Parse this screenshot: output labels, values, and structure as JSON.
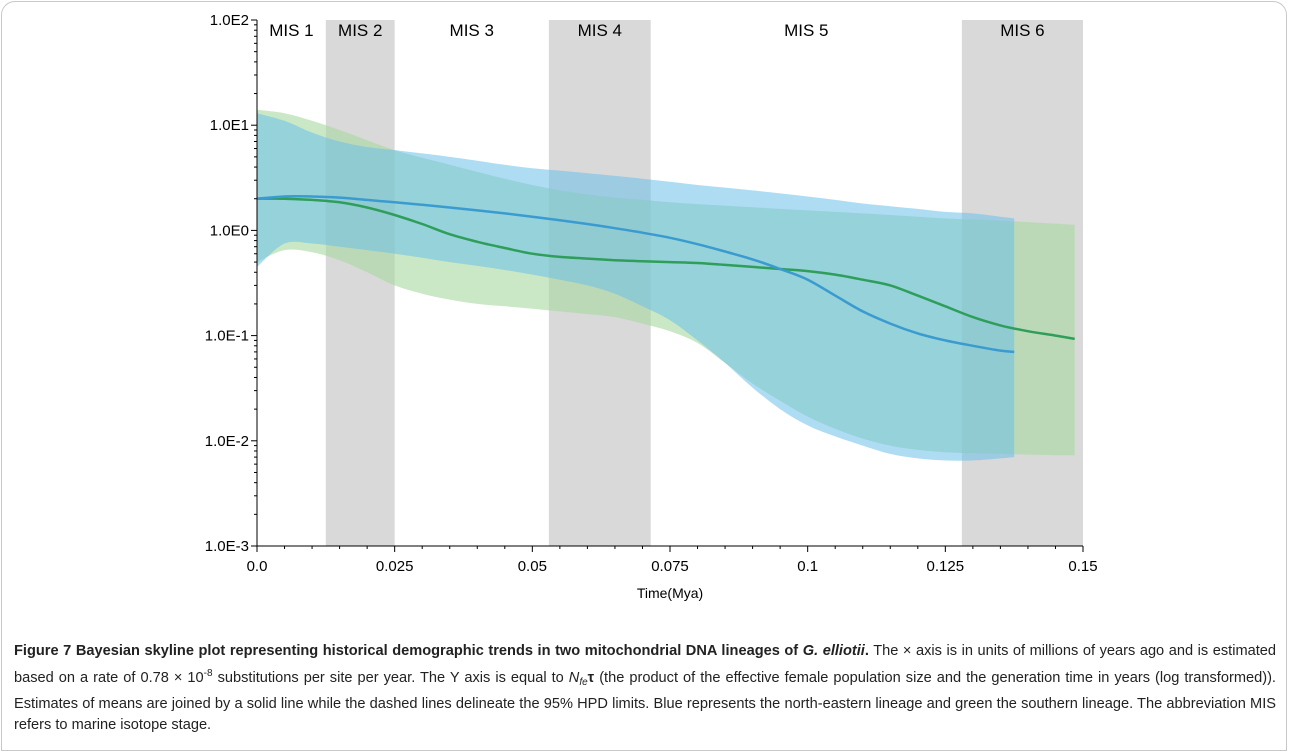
{
  "chart_data": {
    "type": "area",
    "xlabel": "Time(Mya)",
    "ylabel": "",
    "xlim": [
      0,
      0.15
    ],
    "ylim": [
      0.001,
      100
    ],
    "y_scale": "log",
    "x_ticks": [
      0,
      0.025,
      0.05,
      0.075,
      0.1,
      0.125,
      0.15
    ],
    "x_tick_labels": [
      "0.0",
      "0.025",
      "0.05",
      "0.075",
      "0.1",
      "0.125",
      "0.15"
    ],
    "y_ticks": [
      0.001,
      0.01,
      0.1,
      1,
      10,
      100
    ],
    "y_tick_labels": [
      "1.0E-3",
      "1.0E-2",
      "1.0E-1",
      "1.0E0",
      "1.0E1",
      "1.0E2"
    ],
    "mis_stages": [
      {
        "label": "MIS 1",
        "start": 0.0,
        "end": 0.0125,
        "shaded": false
      },
      {
        "label": "MIS 2",
        "start": 0.0125,
        "end": 0.025,
        "shaded": true
      },
      {
        "label": "MIS 3",
        "start": 0.025,
        "end": 0.053,
        "shaded": false
      },
      {
        "label": "MIS 4",
        "start": 0.053,
        "end": 0.0715,
        "shaded": true
      },
      {
        "label": "MIS 5",
        "start": 0.0715,
        "end": 0.128,
        "shaded": false
      },
      {
        "label": "MIS 6",
        "start": 0.128,
        "end": 0.15,
        "shaded": true
      }
    ],
    "series": [
      {
        "color": "#3a9bd0",
        "band_color": "#6cc0ea",
        "x": [
          0,
          0.005,
          0.01,
          0.015,
          0.02,
          0.025,
          0.03,
          0.035,
          0.04,
          0.045,
          0.05,
          0.055,
          0.06,
          0.065,
          0.07,
          0.075,
          0.08,
          0.085,
          0.09,
          0.095,
          0.1,
          0.105,
          0.11,
          0.115,
          0.12,
          0.125,
          0.13,
          0.135,
          0.1375
        ],
        "mean": [
          2.0,
          2.1,
          2.1,
          2.05,
          1.95,
          1.85,
          1.75,
          1.65,
          1.55,
          1.45,
          1.35,
          1.25,
          1.15,
          1.05,
          0.95,
          0.85,
          0.74,
          0.63,
          0.53,
          0.43,
          0.34,
          0.24,
          0.17,
          0.13,
          0.105,
          0.09,
          0.08,
          0.072,
          0.07
        ],
        "upper": [
          13,
          11,
          8.5,
          7,
          6.2,
          5.8,
          5.4,
          5.0,
          4.6,
          4.2,
          3.9,
          3.7,
          3.5,
          3.3,
          3.1,
          2.9,
          2.7,
          2.55,
          2.4,
          2.25,
          2.1,
          1.95,
          1.8,
          1.7,
          1.6,
          1.5,
          1.45,
          1.35,
          1.3
        ],
        "lower": [
          0.45,
          0.75,
          0.75,
          0.7,
          0.65,
          0.6,
          0.55,
          0.5,
          0.46,
          0.42,
          0.38,
          0.34,
          0.3,
          0.25,
          0.19,
          0.14,
          0.09,
          0.055,
          0.032,
          0.02,
          0.014,
          0.011,
          0.009,
          0.0075,
          0.0068,
          0.0065,
          0.0065,
          0.0068,
          0.007
        ]
      },
      {
        "color": "#2e9e5a",
        "band_color": "#a8d8a0",
        "x": [
          0,
          0.005,
          0.01,
          0.015,
          0.02,
          0.025,
          0.03,
          0.035,
          0.04,
          0.045,
          0.05,
          0.055,
          0.06,
          0.065,
          0.07,
          0.075,
          0.08,
          0.085,
          0.09,
          0.095,
          0.1,
          0.105,
          0.11,
          0.115,
          0.12,
          0.125,
          0.13,
          0.135,
          0.14,
          0.145,
          0.1485
        ],
        "mean": [
          2.0,
          2.0,
          1.95,
          1.85,
          1.65,
          1.4,
          1.15,
          0.92,
          0.78,
          0.68,
          0.6,
          0.56,
          0.54,
          0.52,
          0.51,
          0.5,
          0.49,
          0.47,
          0.45,
          0.43,
          0.41,
          0.38,
          0.34,
          0.3,
          0.24,
          0.19,
          0.15,
          0.125,
          0.11,
          0.1,
          0.093
        ],
        "upper": [
          14,
          13,
          11,
          9,
          7.2,
          5.8,
          4.9,
          4.2,
          3.6,
          3.1,
          2.7,
          2.4,
          2.2,
          2.05,
          1.95,
          1.85,
          1.78,
          1.72,
          1.66,
          1.6,
          1.55,
          1.5,
          1.45,
          1.4,
          1.35,
          1.3,
          1.27,
          1.24,
          1.2,
          1.16,
          1.13
        ],
        "lower": [
          0.5,
          0.65,
          0.62,
          0.52,
          0.4,
          0.3,
          0.25,
          0.22,
          0.2,
          0.19,
          0.18,
          0.17,
          0.16,
          0.15,
          0.13,
          0.11,
          0.085,
          0.055,
          0.035,
          0.024,
          0.017,
          0.013,
          0.0105,
          0.009,
          0.0082,
          0.0078,
          0.0076,
          0.0075,
          0.0074,
          0.0073,
          0.0073
        ]
      }
    ]
  },
  "caption": {
    "label": "Figure 7 Bayesian skyline plot representing historical demographic trends in two mitochondrial DNA lineages of",
    "species": "G. elliotii",
    "period": ".",
    "s1": " The × axis is in units of millions of years ago and is estimated based on a rate of 0.78 × 10",
    "exp": "-8",
    "s2": " substitutions per site per year. The Y axis is equal to ",
    "n": "N",
    "fe": "fe",
    "tau": "τ",
    "s3": " (the product of the effective female population size and the generation time in years (log transformed)). Estimates of means are joined by a solid line while the dashed lines delineate the 95% HPD limits. Blue represents the north-eastern lineage and green the southern lineage. The abbreviation MIS refers to marine isotope stage."
  }
}
